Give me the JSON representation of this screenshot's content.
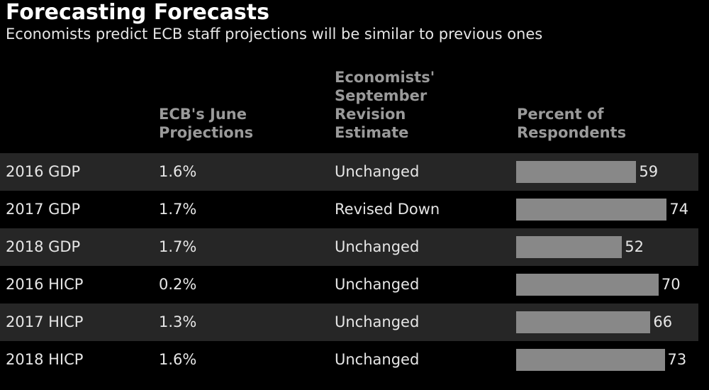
{
  "title": "Forecasting Forecasts",
  "subtitle": "Economists predict ECB staff projections will be similar to previous ones",
  "headers": {
    "indicator": "",
    "projections": "ECB's June\nProjections",
    "estimate": "Economists'\nSeptember\nRevision\nEstimate",
    "percent": "Percent of\nRespondents"
  },
  "colors": {
    "background": "#000000",
    "row_shade": "#262626",
    "bar": "#888888",
    "header_text": "#9a9a9a"
  },
  "chart_data": {
    "type": "table",
    "columns": [
      "",
      "ECB's June Projections",
      "Economists' September Revision Estimate",
      "Percent of Respondents"
    ],
    "rows": [
      {
        "indicator": "2016 GDP",
        "projection": "1.6%",
        "estimate": "Unchanged",
        "percent": 59
      },
      {
        "indicator": "2017 GDP",
        "projection": "1.7%",
        "estimate": "Revised Down",
        "percent": 74
      },
      {
        "indicator": "2018 GDP",
        "projection": "1.7%",
        "estimate": "Unchanged",
        "percent": 52
      },
      {
        "indicator": "2016 HICP",
        "projection": "0.2%",
        "estimate": "Unchanged",
        "percent": 70
      },
      {
        "indicator": "2017 HICP",
        "projection": "1.3%",
        "estimate": "Unchanged",
        "percent": 66
      },
      {
        "indicator": "2018 HICP",
        "projection": "1.6%",
        "estimate": "Unchanged",
        "percent": 73
      }
    ]
  }
}
